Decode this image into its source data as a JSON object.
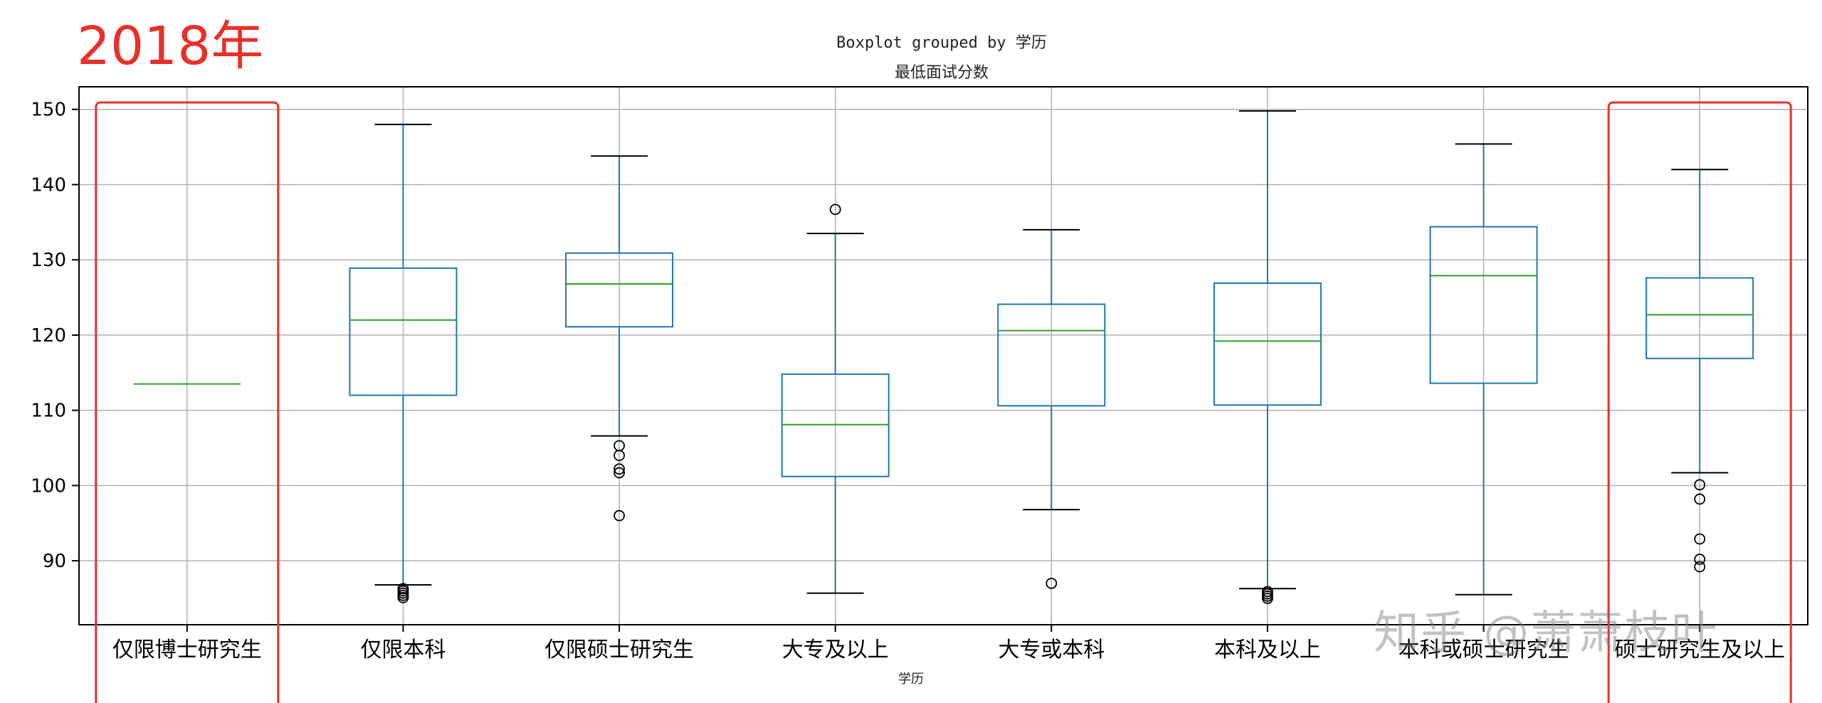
{
  "annotation": {
    "year_label": "2018年",
    "annotation_color": "#e8312a"
  },
  "watermark": "知乎 @萧萧枝叶",
  "chart_data": {
    "type": "boxplot",
    "title": "Boxplot grouped by 学历",
    "subtitle": "最低面试分数",
    "xlabel": "学历",
    "ylabel": "",
    "ylim": [
      81.5,
      153
    ],
    "yticks": [
      90,
      100,
      110,
      120,
      130,
      140,
      150
    ],
    "grid": true,
    "box_color": "#1f77b4",
    "median_color": "#2ca02c",
    "categories": [
      "仅限博士研究生",
      "仅限本科",
      "仅限硕士研究生",
      "大专及以上",
      "大专或本科",
      "本科及以上",
      "本科或硕士研究生",
      "硕士研究生及以上"
    ],
    "boxes": [
      {
        "whisker_low": 113.5,
        "q1": 113.5,
        "median": 113.5,
        "q3": 113.5,
        "whisker_high": 113.5,
        "outliers": []
      },
      {
        "whisker_low": 86.8,
        "q1": 112.0,
        "median": 122.0,
        "q3": 128.9,
        "whisker_high": 148.0,
        "outliers": [
          86.3,
          86.0,
          85.7,
          85.4,
          85.1
        ]
      },
      {
        "whisker_low": 106.6,
        "q1": 121.1,
        "median": 126.8,
        "q3": 130.9,
        "whisker_high": 143.8,
        "outliers": [
          105.3,
          104.0,
          102.2,
          101.7,
          96.0
        ]
      },
      {
        "whisker_low": 85.7,
        "q1": 101.2,
        "median": 108.1,
        "q3": 114.8,
        "whisker_high": 133.5,
        "outliers": [
          136.7
        ]
      },
      {
        "whisker_low": 96.8,
        "q1": 110.6,
        "median": 120.6,
        "q3": 124.1,
        "whisker_high": 134.0,
        "outliers": [
          87.0
        ]
      },
      {
        "whisker_low": 86.3,
        "q1": 110.7,
        "median": 119.2,
        "q3": 126.9,
        "whisker_high": 149.8,
        "outliers": [
          85.9,
          85.6,
          85.3,
          85.0
        ]
      },
      {
        "whisker_low": 85.5,
        "q1": 113.6,
        "median": 127.9,
        "q3": 134.4,
        "whisker_high": 145.4,
        "outliers": []
      },
      {
        "whisker_low": 101.7,
        "q1": 116.9,
        "median": 122.7,
        "q3": 127.6,
        "whisker_high": 142.0,
        "outliers": [
          100.1,
          98.2,
          92.9,
          90.2,
          89.2
        ]
      }
    ],
    "highlighted_categories": [
      "仅限博士研究生",
      "硕士研究生及以上"
    ]
  }
}
